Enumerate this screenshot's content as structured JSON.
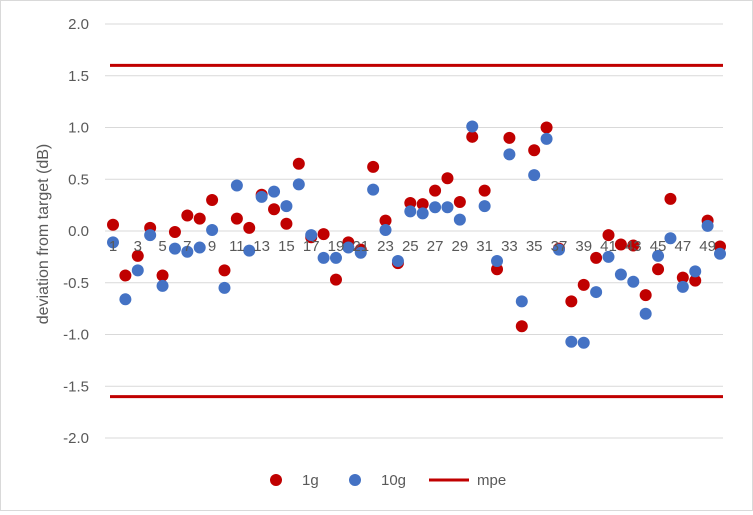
{
  "chart_data": {
    "type": "scatter",
    "title": "",
    "ylabel": "deviation from target (dB)",
    "xlabel": "",
    "ylim": [
      -2.0,
      2.0
    ],
    "y_ticks": [
      "2.0",
      "1.5",
      "1.0",
      "0.5",
      "0.0",
      "-0.5",
      "-1.0",
      "-1.5",
      "-2.0"
    ],
    "y_tick_values": [
      2.0,
      1.5,
      1.0,
      0.5,
      0.0,
      -0.5,
      -1.0,
      -1.5,
      -2.0
    ],
    "x_ticks": [
      "1",
      "3",
      "5",
      "7",
      "9",
      "11",
      "13",
      "15",
      "17",
      "19",
      "21",
      "23",
      "25",
      "27",
      "29",
      "31",
      "33",
      "35",
      "37",
      "39",
      "41",
      "43",
      "45",
      "47",
      "49"
    ],
    "x_tick_values": [
      1,
      3,
      5,
      7,
      9,
      11,
      13,
      15,
      17,
      19,
      21,
      23,
      25,
      27,
      29,
      31,
      33,
      35,
      37,
      39,
      41,
      43,
      45,
      47,
      49
    ],
    "x": [
      1,
      2,
      3,
      4,
      5,
      6,
      7,
      8,
      9,
      10,
      11,
      12,
      13,
      14,
      15,
      16,
      17,
      18,
      19,
      20,
      21,
      22,
      23,
      24,
      25,
      26,
      27,
      28,
      29,
      30,
      31,
      32,
      33,
      34,
      35,
      36,
      37,
      38,
      39,
      40,
      41,
      42,
      43,
      44,
      45,
      46,
      47,
      48,
      49,
      50
    ],
    "grid": true,
    "legend_position": "bottom",
    "series": [
      {
        "name": "1g",
        "color": "#c00000",
        "values": [
          0.06,
          -0.43,
          -0.24,
          0.03,
          -0.43,
          -0.01,
          0.15,
          0.12,
          0.3,
          -0.38,
          0.12,
          0.03,
          0.35,
          0.21,
          0.07,
          0.65,
          -0.06,
          -0.03,
          -0.47,
          -0.11,
          -0.18,
          0.62,
          0.1,
          -0.31,
          0.27,
          0.26,
          0.39,
          0.51,
          0.28,
          0.91,
          0.39,
          -0.37,
          0.9,
          -0.92,
          0.78,
          1.0,
          -0.17,
          -0.68,
          -0.52,
          -0.26,
          -0.04,
          -0.13,
          -0.14,
          -0.62,
          -0.37,
          0.31,
          -0.45,
          -0.48,
          0.1,
          -0.15
        ]
      },
      {
        "name": "10g",
        "color": "#4472c4",
        "values": [
          -0.11,
          -0.66,
          -0.38,
          -0.04,
          -0.53,
          -0.17,
          -0.2,
          -0.16,
          0.01,
          -0.55,
          0.44,
          -0.19,
          0.33,
          0.38,
          0.24,
          0.45,
          -0.04,
          -0.26,
          -0.26,
          -0.16,
          -0.21,
          0.4,
          0.01,
          -0.29,
          0.19,
          0.17,
          0.23,
          0.23,
          0.11,
          1.01,
          0.24,
          -0.29,
          0.74,
          -0.68,
          0.54,
          0.89,
          -0.18,
          -1.07,
          -1.08,
          -0.59,
          -0.25,
          -0.42,
          -0.49,
          -0.8,
          -0.24,
          -0.07,
          -0.54,
          -0.39,
          0.05,
          -0.22
        ]
      },
      {
        "name": "mpe",
        "color": "#c00000",
        "type": "line",
        "lines": [
          1.6,
          -1.6
        ]
      }
    ]
  }
}
